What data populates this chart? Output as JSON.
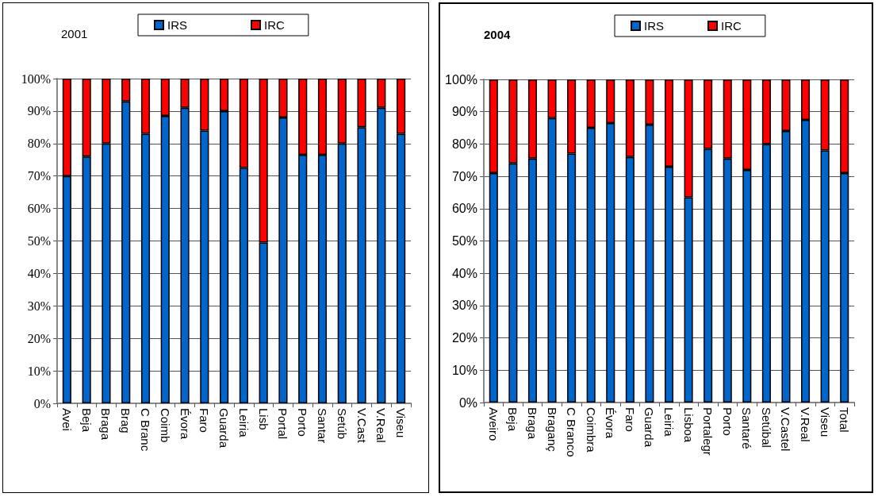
{
  "chart_data": [
    {
      "type": "bar",
      "title": "2001",
      "stacked": true,
      "grid": "y",
      "legend": "top",
      "categories": [
        "Avei",
        "Beja",
        "Braga",
        "Brag",
        "C Branc",
        "Coimb",
        "Évora",
        "Faro",
        "Guarda",
        "Leiria",
        "Lisb",
        "Portal",
        "Porto",
        "Santar",
        "Setúb",
        "V.Cast",
        "V.Real",
        "Viseu"
      ],
      "series": [
        {
          "name": "IRS",
          "color": "#0066cc",
          "values": [
            70,
            76,
            80,
            93,
            83,
            88.5,
            91,
            84,
            90,
            72.5,
            49.5,
            88,
            76.5,
            76.5,
            80,
            85,
            91,
            83
          ]
        },
        {
          "name": "IRC",
          "color": "#ff0000",
          "values": [
            30,
            24,
            20,
            7,
            17,
            11.5,
            9,
            16,
            10,
            27.5,
            50.5,
            12,
            23.5,
            23.5,
            20,
            15,
            9,
            17
          ]
        }
      ],
      "ylim": [
        0,
        100
      ],
      "yticks": [
        {
          "value": 0,
          "label": "0%"
        },
        {
          "value": 10,
          "label": "10%"
        },
        {
          "value": 20,
          "label": "20%"
        },
        {
          "value": 30,
          "label": "30%"
        },
        {
          "value": 40,
          "label": "40%"
        },
        {
          "value": 50,
          "label": "50%"
        },
        {
          "value": 60,
          "label": "60%"
        },
        {
          "value": 70,
          "label": "70%"
        },
        {
          "value": 80,
          "label": "80%"
        },
        {
          "value": 90,
          "label": "90%"
        },
        {
          "value": 100,
          "label": "100%"
        }
      ]
    },
    {
      "type": "bar",
      "title": "2004",
      "stacked": true,
      "grid": "y",
      "legend": "top",
      "categories": [
        "Aveiro",
        "Beja",
        "Braga",
        "Braganç",
        "C Branco",
        "Coimbra",
        "Évora",
        "Faro",
        "Guarda",
        "Leiria",
        "Lisboa",
        "Portalegr",
        "Porto",
        "Santaré",
        "Setúbal",
        "V.Castel",
        "V.Real",
        "Viseu",
        "Total"
      ],
      "series": [
        {
          "name": "IRS",
          "color": "#0066cc",
          "values": [
            71,
            74,
            75.5,
            88,
            77,
            85,
            86.5,
            76,
            86,
            73,
            63.5,
            78.5,
            75.5,
            72,
            80,
            84,
            87.5,
            78,
            71
          ]
        },
        {
          "name": "IRC",
          "color": "#ff0000",
          "values": [
            29,
            26,
            24.5,
            12,
            23,
            15,
            13.5,
            24,
            14,
            27,
            36.5,
            21.5,
            24.5,
            28,
            20,
            16,
            12.5,
            22,
            29
          ]
        }
      ],
      "ylim": [
        0,
        100
      ],
      "yticks": [
        {
          "value": 0,
          "label": "0%"
        },
        {
          "value": 10,
          "label": "10%"
        },
        {
          "value": 20,
          "label": "20%"
        },
        {
          "value": 30,
          "label": "30%"
        },
        {
          "value": 40,
          "label": "40%"
        },
        {
          "value": 50,
          "label": "50%"
        },
        {
          "value": 60,
          "label": "60%"
        },
        {
          "value": 70,
          "label": "70%"
        },
        {
          "value": 80,
          "label": "80%"
        },
        {
          "value": 90,
          "label": "90%"
        },
        {
          "value": 100,
          "label": "100%"
        }
      ]
    }
  ]
}
